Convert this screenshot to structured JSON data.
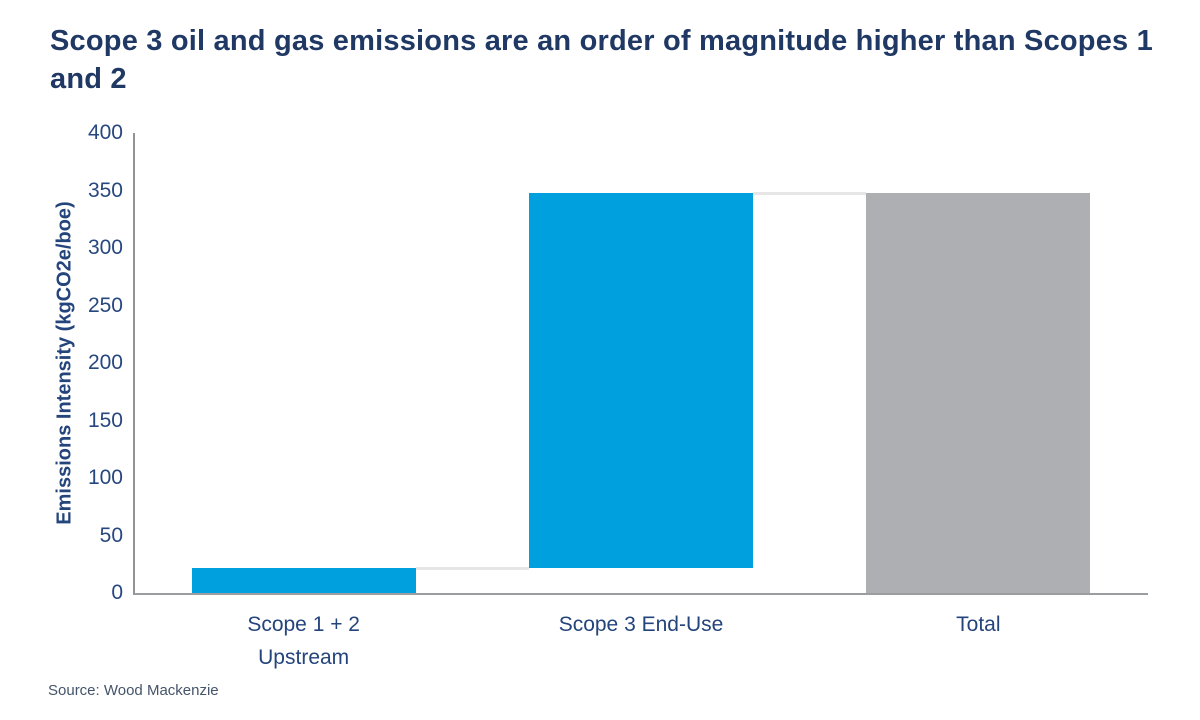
{
  "title": "Scope 3 oil and gas emissions are an order of magnitude higher than Scopes 1 and 2",
  "source": "Source: Wood Mackenzie",
  "colors": {
    "title_navy": "#1f3864",
    "axis_text_navy": "#24447c",
    "bar_blue": "#00a0df",
    "bar_gray": "#adafb2",
    "y_axis_line": "#919396",
    "x_axis_line": "#9b9ea1",
    "connector_gray": "#e6e6e6",
    "source_text": "#44546a"
  },
  "chart_data": {
    "type": "bar",
    "subtype": "waterfall",
    "title": "Scope 3 oil and gas emissions are an order of magnitude higher than Scopes 1 and 2",
    "xlabel": "",
    "ylabel": "Emissions Intensity (kgCO2e/boe)",
    "ylim": [
      0,
      400
    ],
    "yticks": [
      0,
      50,
      100,
      150,
      200,
      250,
      300,
      350,
      400
    ],
    "grid": false,
    "legend": false,
    "categories": [
      {
        "lines": [
          "Scope 1 + 2",
          "Upstream"
        ]
      },
      {
        "lines": [
          "Scope 3 End-Use"
        ]
      },
      {
        "lines": [
          "Total"
        ]
      }
    ],
    "bars": [
      {
        "name": "scope-1-2-upstream",
        "base": 0,
        "top": 22,
        "value": 22,
        "color_key": "bar_blue"
      },
      {
        "name": "scope-3-end-use",
        "base": 22,
        "top": 348,
        "value": 326,
        "color_key": "bar_blue"
      },
      {
        "name": "total",
        "base": 0,
        "top": 348,
        "value": 348,
        "color_key": "bar_gray"
      }
    ],
    "connectors": [
      {
        "from_bar": 0,
        "to_bar": 1,
        "value": 22
      },
      {
        "from_bar": 1,
        "to_bar": 2,
        "value": 348
      }
    ]
  }
}
